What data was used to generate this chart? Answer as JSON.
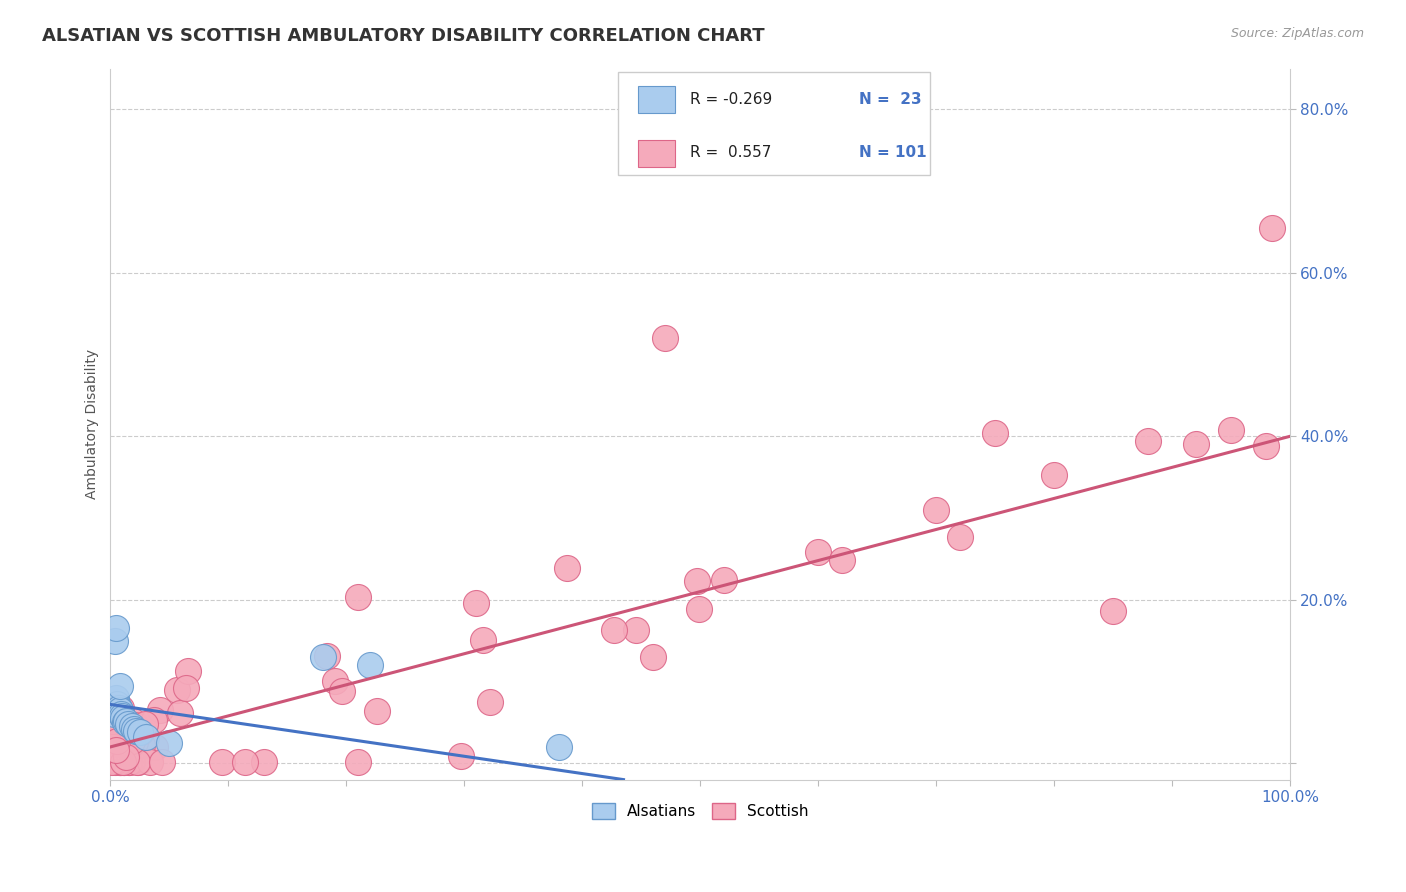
{
  "title": "ALSATIAN VS SCOTTISH AMBULATORY DISABILITY CORRELATION CHART",
  "source": "Source: ZipAtlas.com",
  "ylabel": "Ambulatory Disability",
  "xlim": [
    0.0,
    1.0
  ],
  "ylim": [
    -0.02,
    0.85
  ],
  "x_ticks": [
    0.0,
    0.1,
    0.2,
    0.3,
    0.4,
    0.5,
    0.6,
    0.7,
    0.8,
    0.9,
    1.0
  ],
  "x_tick_labels": [
    "0.0%",
    "",
    "",
    "",
    "",
    "",
    "",
    "",
    "",
    "",
    "100.0%"
  ],
  "y_ticks": [
    0.0,
    0.2,
    0.4,
    0.6,
    0.8
  ],
  "y_tick_labels": [
    "",
    "20.0%",
    "40.0%",
    "60.0%",
    "80.0%"
  ],
  "grid_color": "#cccccc",
  "background_color": "#ffffff",
  "alsatian_color": "#aaccee",
  "scottish_color": "#f5aabb",
  "alsatian_edge_color": "#6699cc",
  "scottish_edge_color": "#dd6688",
  "alsatian_line_color": "#4472c4",
  "scottish_line_color": "#cc5577",
  "legend_r_alsatian": "-0.269",
  "legend_n_alsatian": "23",
  "legend_r_scottish": "0.557",
  "legend_n_scottish": "101",
  "tick_color": "#4472c4",
  "title_color": "#333333",
  "source_color": "#999999"
}
